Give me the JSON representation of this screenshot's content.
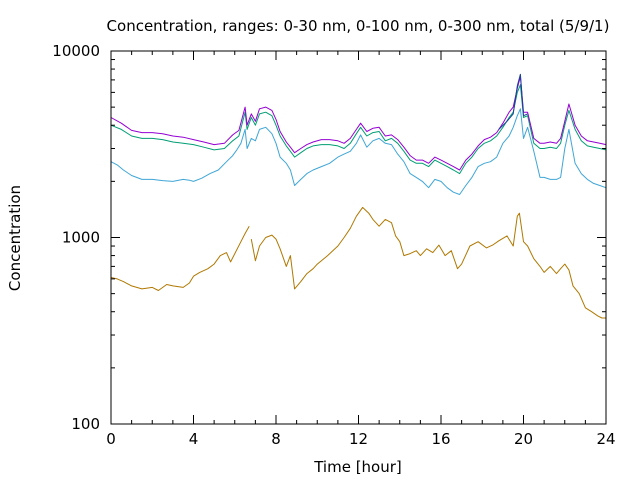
{
  "chart_data": {
    "type": "line",
    "title": "Concentration, ranges: 0-30 nm, 0-100 nm, 0-300 nm, total (5/9/1)",
    "xlabel": "Time [hour]",
    "ylabel": "Concentration",
    "xlim": [
      0,
      24
    ],
    "ylim": [
      100,
      10000
    ],
    "yscale": "log",
    "grid": false,
    "legend": "none",
    "x_ticks": [
      0,
      4,
      8,
      12,
      16,
      20,
      24
    ],
    "x_tick_labels": [
      "0",
      "4",
      "8",
      "12",
      "16",
      "20",
      "24"
    ],
    "y_ticks": [
      100,
      1000,
      10000
    ],
    "y_tick_labels": [
      "100",
      "1000",
      "10000"
    ],
    "series": [
      {
        "color": "#b07800",
        "segments": [
          {
            "x": [
              0,
              0.3,
              0.6,
              1,
              1.5,
              2,
              2.3,
              2.7,
              3,
              3.5,
              3.8,
              4,
              4.3,
              4.7,
              5,
              5.3,
              5.6,
              5.8,
              6,
              6.3,
              6.5,
              6.7
            ],
            "y": [
              610,
              600,
              580,
              550,
              530,
              540,
              520,
              560,
              550,
              540,
              570,
              620,
              650,
              680,
              720,
              800,
              830,
              740,
              820,
              950,
              1050,
              1150
            ]
          },
          {
            "x": [
              6.8,
              7,
              7.2,
              7.5,
              7.8,
              8,
              8.2,
              8.5,
              8.7,
              8.9,
              9.2,
              9.5,
              9.8,
              10,
              10.5,
              11,
              11.3,
              11.6,
              11.9,
              12.2,
              12.5,
              12.7,
              13,
              13.3,
              13.6,
              13.8,
              14,
              14.2,
              14.5,
              14.8,
              15,
              15.3,
              15.6,
              15.9,
              16.2,
              16.5,
              16.8,
              17,
              17.4,
              17.8,
              18.2,
              18.5,
              18.8,
              19.2,
              19.5,
              19.7,
              19.8,
              20,
              20.2,
              20.5,
              20.8,
              21,
              21.3,
              21.6,
              21.8,
              22,
              22.2,
              22.4,
              22.7,
              23,
              23.3,
              23.6,
              23.8,
              24
            ],
            "y": [
              980,
              750,
              900,
              1000,
              1030,
              980,
              870,
              700,
              800,
              530,
              580,
              640,
              680,
              720,
              800,
              900,
              1000,
              1120,
              1300,
              1450,
              1350,
              1250,
              1150,
              1250,
              1200,
              1020,
              950,
              800,
              820,
              850,
              800,
              870,
              830,
              910,
              800,
              850,
              680,
              720,
              900,
              950,
              880,
              910,
              960,
              1020,
              900,
              1300,
              1350,
              950,
              900,
              770,
              700,
              650,
              700,
              640,
              680,
              720,
              670,
              550,
              500,
              420,
              400,
              380,
              370,
              370
            ]
          }
        ]
      },
      {
        "color": "#3fa6d6",
        "segments": [
          {
            "x": [
              0,
              0.3,
              0.6,
              1,
              1.5,
              2,
              2.5,
              3,
              3.5,
              3.8,
              4,
              4.4,
              4.8,
              5.2,
              5.6,
              5.9,
              6.1,
              6.3,
              6.5,
              6.6,
              6.8,
              7,
              7.2,
              7.5,
              7.8,
              8,
              8.2,
              8.5,
              8.7,
              8.9,
              9.2,
              9.5,
              9.8,
              10.2,
              10.6,
              11,
              11.3,
              11.6,
              11.9,
              12.1,
              12.4,
              12.7,
              13,
              13.3,
              13.6,
              13.9,
              14.2,
              14.5,
              14.8,
              15.1,
              15.4,
              15.7,
              16,
              16.3,
              16.6,
              16.9,
              17.2,
              17.5,
              17.8,
              18.1,
              18.4,
              18.7,
              19,
              19.3,
              19.5,
              19.7,
              19.85,
              20,
              20.2,
              20.5,
              20.8,
              21,
              21.3,
              21.6,
              21.8,
              22,
              22.2,
              22.5,
              22.8,
              23.1,
              23.4,
              23.7,
              24
            ],
            "y": [
              2550,
              2450,
              2300,
              2150,
              2050,
              2050,
              2020,
              2000,
              2050,
              2030,
              2000,
              2080,
              2200,
              2300,
              2550,
              2750,
              2950,
              3200,
              3800,
              3000,
              3400,
              3300,
              3800,
              3900,
              3600,
              3200,
              2700,
              2500,
              2300,
              1900,
              2050,
              2200,
              2300,
              2400,
              2500,
              2700,
              2800,
              2900,
              3200,
              3550,
              3050,
              3300,
              3400,
              3200,
              3150,
              2800,
              2550,
              2200,
              2100,
              2000,
              1850,
              2050,
              2000,
              1850,
              1750,
              1700,
              1900,
              2100,
              2400,
              2500,
              2550,
              2700,
              3200,
              3500,
              3900,
              4500,
              4900,
              3400,
              3900,
              2900,
              2100,
              2100,
              2050,
              2050,
              2100,
              3000,
              3800,
              2500,
              2200,
              2050,
              1950,
              1900,
              1850
            ]
          }
        ]
      },
      {
        "color": "#009e73",
        "segments": [
          {
            "x": [
              0,
              0.5,
              1,
              1.5,
              2,
              2.5,
              3,
              3.5,
              4,
              4.5,
              5,
              5.5,
              5.9,
              6.2,
              6.5,
              6.6,
              6.8,
              7,
              7.2,
              7.5,
              7.8,
              8,
              8.2,
              8.5,
              8.7,
              8.9,
              9.2,
              9.5,
              9.8,
              10.2,
              10.6,
              11,
              11.3,
              11.6,
              11.9,
              12.1,
              12.4,
              12.7,
              13,
              13.3,
              13.6,
              13.9,
              14.2,
              14.5,
              14.8,
              15.1,
              15.4,
              15.7,
              16,
              16.3,
              16.6,
              16.9,
              17.2,
              17.5,
              17.8,
              18.1,
              18.4,
              18.7,
              19,
              19.3,
              19.5,
              19.7,
              19.85,
              20,
              20.2,
              20.5,
              20.8,
              21,
              21.3,
              21.6,
              21.8,
              22,
              22.2,
              22.5,
              22.8,
              23.1,
              23.4,
              23.7,
              24
            ],
            "y": [
              4000,
              3800,
              3500,
              3400,
              3400,
              3350,
              3250,
              3200,
              3150,
              3050,
              2950,
              3000,
              3300,
              3500,
              4700,
              3800,
              4400,
              4000,
              4600,
              4700,
              4500,
              4000,
              3500,
              3100,
              2900,
              2700,
              2850,
              3000,
              3100,
              3150,
              3150,
              3100,
              3000,
              3200,
              3600,
              3900,
              3500,
              3650,
              3700,
              3300,
              3400,
              3200,
              2900,
              2600,
              2500,
              2500,
              2400,
              2600,
              2500,
              2400,
              2300,
              2200,
              2500,
              2700,
              3000,
              3200,
              3300,
              3500,
              3900,
              4400,
              4700,
              6000,
              6600,
              4400,
              4500,
              3200,
              3000,
              3000,
              3050,
              3000,
              3200,
              4000,
              4800,
              3800,
              3300,
              3100,
              3050,
              3000,
              2950
            ]
          }
        ]
      },
      {
        "color": "#9400d3",
        "segments": [
          {
            "x": [
              0,
              0.5,
              1,
              1.5,
              2,
              2.5,
              3,
              3.5,
              4,
              4.5,
              5,
              5.5,
              5.9,
              6.2,
              6.5,
              6.6,
              6.8,
              7,
              7.2,
              7.5,
              7.8,
              8,
              8.2,
              8.5,
              8.7,
              8.9,
              9.2,
              9.5,
              9.8,
              10.2,
              10.6,
              11,
              11.3,
              11.6,
              11.9,
              12.1,
              12.4,
              12.7,
              13,
              13.3,
              13.6,
              13.9,
              14.2,
              14.5,
              14.8,
              15.1,
              15.4,
              15.7,
              16,
              16.3,
              16.6,
              16.9,
              17.2,
              17.5,
              17.8,
              18.1,
              18.4,
              18.7,
              19,
              19.3,
              19.5,
              19.7,
              19.85,
              20,
              20.2,
              20.5,
              20.8,
              21,
              21.3,
              21.6,
              21.8,
              22,
              22.2,
              22.5,
              22.8,
              23.1,
              23.4,
              23.7,
              24
            ],
            "y": [
              4400,
              4100,
              3750,
              3650,
              3650,
              3600,
              3500,
              3450,
              3350,
              3250,
              3150,
              3200,
              3550,
              3750,
              5000,
              4000,
              4600,
              4200,
              4900,
              5000,
              4800,
              4300,
              3700,
              3250,
              3050,
              2850,
              3000,
              3150,
              3250,
              3350,
              3350,
              3300,
              3200,
              3400,
              3800,
              4100,
              3700,
              3850,
              3900,
              3500,
              3550,
              3350,
              3050,
              2750,
              2600,
              2600,
              2500,
              2700,
              2600,
              2500,
              2400,
              2300,
              2600,
              2800,
              3100,
              3350,
              3450,
              3650,
              4100,
              4700,
              5000,
              6300,
              7300,
              4700,
              4700,
              3400,
              3200,
              3200,
              3250,
              3200,
              3400,
              4200,
              5200,
              4000,
              3500,
              3300,
              3250,
              3200,
              3150
            ]
          }
        ]
      },
      {
        "color": "#1a3f9a",
        "segments": [
          {
            "x": [
              18.8,
              19.2,
              19.5,
              19.7,
              19.85,
              20,
              20.2
            ],
            "y": [
              3800,
              4200,
              4600,
              6500,
              7500,
              4500,
              4600
            ]
          }
        ]
      }
    ]
  }
}
